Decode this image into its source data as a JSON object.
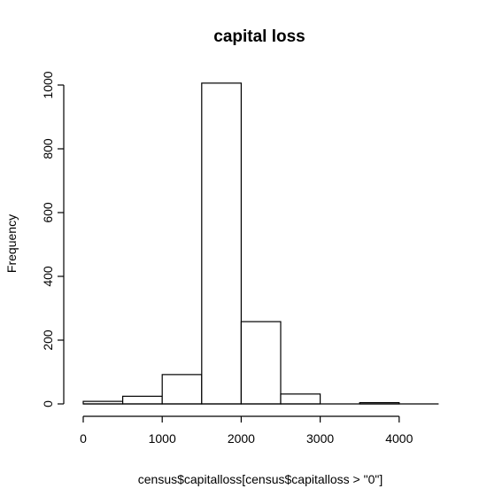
{
  "chart_data": {
    "type": "bar",
    "title": "capital loss",
    "xlabel": "census$capitalloss[census$capitalloss > \"0\"]",
    "ylabel": "Frequency",
    "bins": [
      {
        "from": 0,
        "to": 500,
        "value": 8
      },
      {
        "from": 500,
        "to": 1000,
        "value": 24
      },
      {
        "from": 1000,
        "to": 1500,
        "value": 92
      },
      {
        "from": 1500,
        "to": 2000,
        "value": 1006
      },
      {
        "from": 2000,
        "to": 2500,
        "value": 258
      },
      {
        "from": 2500,
        "to": 3000,
        "value": 31
      },
      {
        "from": 3000,
        "to": 3500,
        "value": 0
      },
      {
        "from": 3500,
        "to": 4000,
        "value": 4
      },
      {
        "from": 4000,
        "to": 4500,
        "value": 0
      }
    ],
    "xlim": [
      0,
      4500
    ],
    "ylim": [
      0,
      1000
    ],
    "x_ticks": [
      0,
      1000,
      2000,
      3000,
      4000
    ],
    "x_tick_labels": [
      "0",
      "1000",
      "2000",
      "3000",
      "4000"
    ],
    "y_ticks": [
      0,
      200,
      400,
      600,
      800,
      1000
    ],
    "y_tick_labels": [
      "0",
      "200",
      "400",
      "600",
      "800",
      "1000"
    ],
    "grid": false,
    "legend": "none"
  }
}
